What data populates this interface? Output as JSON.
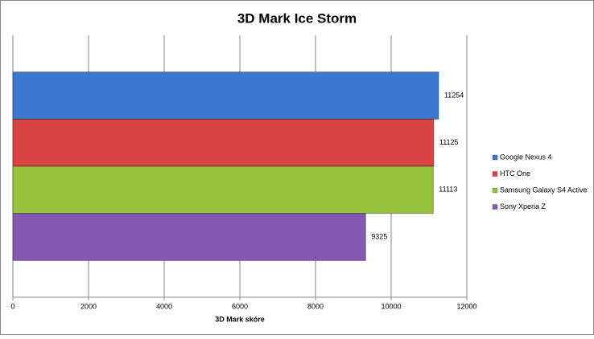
{
  "chart_data": {
    "type": "bar",
    "orientation": "horizontal",
    "title": "3D Mark Ice Storm",
    "x_label": "3D Mark skóre",
    "categories": [
      null
    ],
    "series": [
      {
        "name": "Google Nexus 4",
        "color": "#3b79d1",
        "values": [
          11254
        ]
      },
      {
        "name": "HTC One",
        "color": "#d94343",
        "values": [
          11125
        ]
      },
      {
        "name": "Samsung Galaxy S4 Active",
        "color": "#96c33b",
        "values": [
          11113
        ]
      },
      {
        "name": "Sony Xperia Z",
        "color": "#8459b1",
        "values": [
          9325
        ]
      }
    ],
    "xlim": [
      0,
      12000
    ],
    "xticks": [
      0,
      2000,
      4000,
      6000,
      8000,
      10000,
      12000
    ],
    "grid": true,
    "legend": "right"
  }
}
